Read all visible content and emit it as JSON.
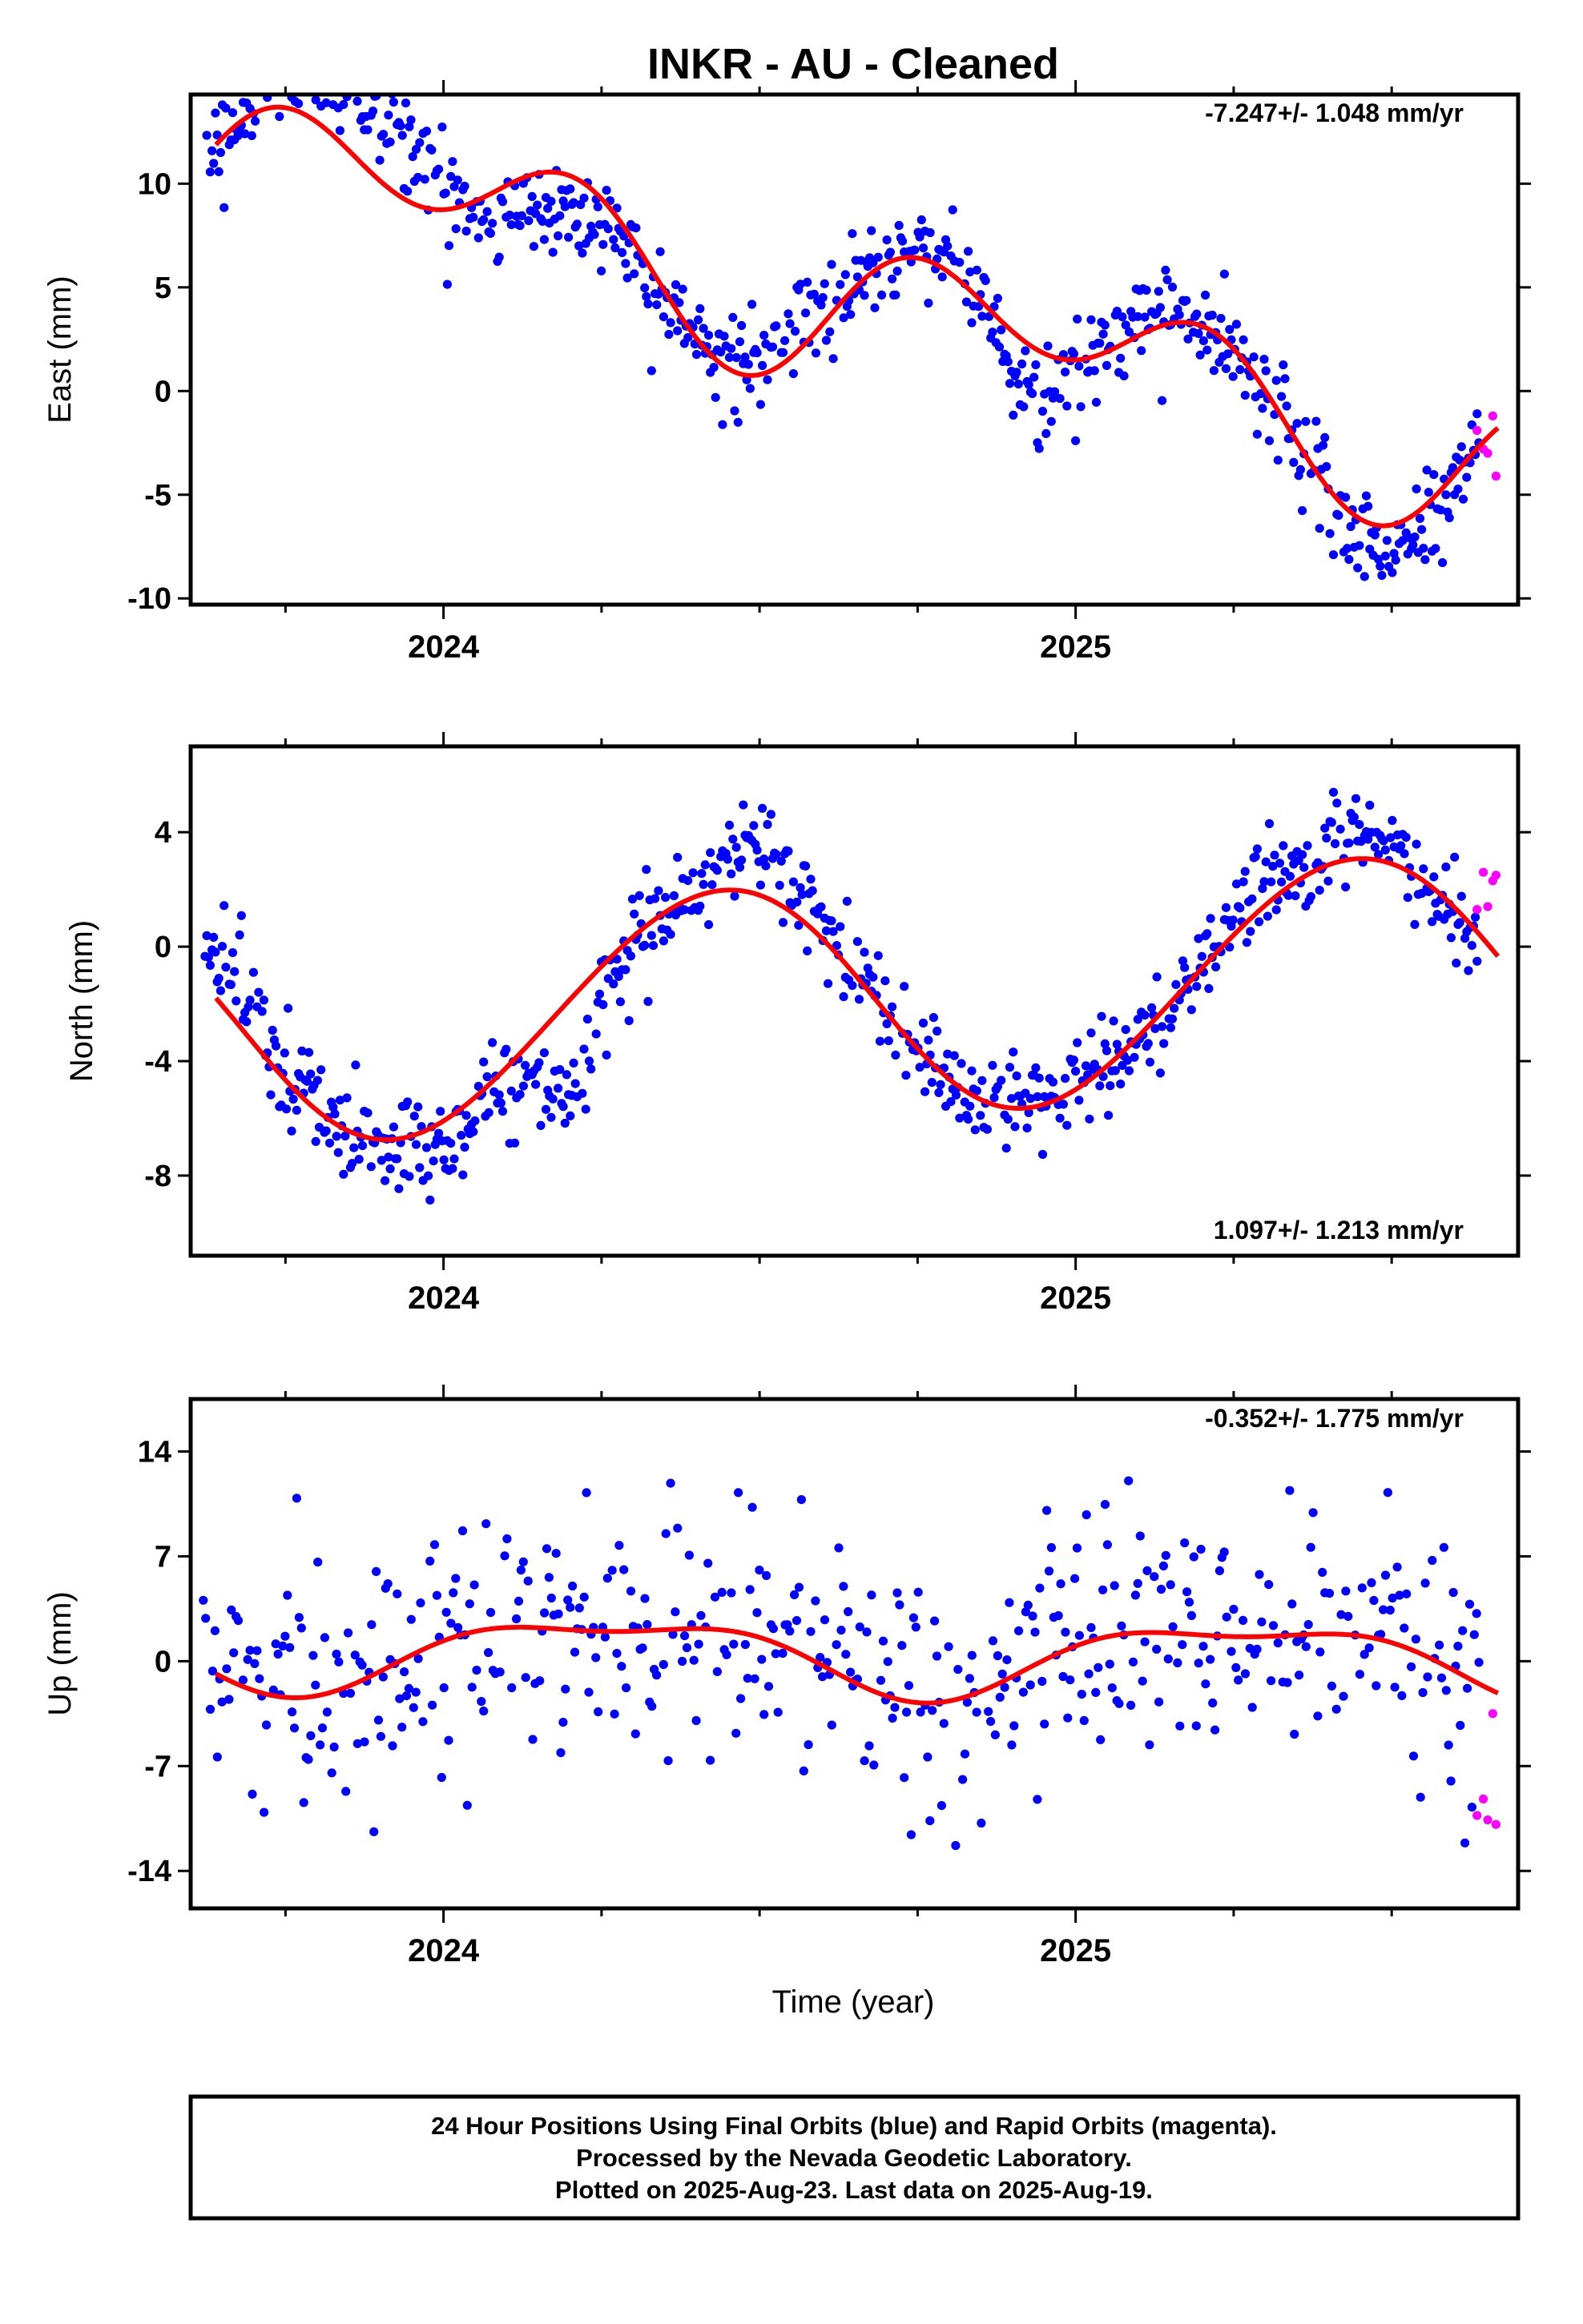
{
  "chart_data": {
    "type": "scatter",
    "title": "INKR  - AU - Cleaned",
    "xlabel": "Time (year)",
    "xlim": [
      2023.6,
      2025.7
    ],
    "x_ticks": [
      2024,
      2025
    ],
    "x_tick_labels": [
      "2024",
      "2025"
    ],
    "colors": {
      "final": "#0000ff",
      "rapid": "#ff00ff",
      "model": "#ff0000",
      "frame": "#000000"
    },
    "panels": [
      {
        "id": "east",
        "ylabel": "East (mm)",
        "ylim": [
          -10.3,
          14.3
        ],
        "y_ticks": [
          10,
          5,
          0,
          -5,
          -10
        ],
        "y_tick_labels": [
          "10",
          "5",
          "0",
          "-5",
          "-10"
        ],
        "rate": "-7.247+/- 1.048 mm/yr",
        "model": {
          "offset": 5.4,
          "trend": -7.247,
          "annual_amp": 2.2,
          "annual_phase_deg": 100,
          "semi_amp": 2.6,
          "semi_phase_deg": 290
        },
        "final_series": {
          "x_start": 2023.62,
          "x_end": 2025.64,
          "step_days": 1.0,
          "anomalies": [
            [
              2023.8,
              2.5,
              0.08
            ],
            [
              2023.93,
              2.8,
              0.08
            ],
            [
              2024.12,
              -1.6,
              0.07
            ],
            [
              2024.22,
              -1.4,
              0.06
            ],
            [
              2024.54,
              1.4,
              0.06
            ],
            [
              2024.78,
              0.9,
              0.06
            ],
            [
              2024.93,
              -2.6,
              0.05
            ],
            [
              2025.1,
              0.8,
              0.06
            ],
            [
              2025.5,
              -1.2,
              0.07
            ]
          ],
          "noise": 1.15
        },
        "rapid_points": {
          "x": [
            2025.635,
            2025.645,
            2025.652,
            2025.66,
            2025.665
          ],
          "y": [
            -1.9,
            -2.8,
            -3.0,
            -1.2,
            -4.1
          ]
        }
      },
      {
        "id": "north",
        "ylabel": "North (mm)",
        "ylim": [
          -10.8,
          7.0
        ],
        "y_ticks": [
          4,
          0,
          -4,
          -8
        ],
        "y_tick_labels": [
          "4",
          "0",
          "-4",
          "-8"
        ],
        "rate": "1.097+/- 1.213 mm/yr",
        "model": {
          "offset": -2.0,
          "trend": 1.097,
          "annual_amp": 4.05,
          "annual_phase_deg": 295,
          "semi_amp": 0.2,
          "semi_phase_deg": 40
        },
        "final_series": {
          "x_start": 2023.62,
          "x_end": 2025.64,
          "step_days": 1.0,
          "anomalies": [
            [
              2023.66,
              1.9,
              0.05
            ],
            [
              2024.02,
              -0.9,
              0.06
            ],
            [
              2024.2,
              -3.2,
              0.07
            ],
            [
              2024.5,
              1.6,
              0.07
            ],
            [
              2024.62,
              0.5,
              0.05
            ],
            [
              2024.95,
              0.5,
              0.05
            ],
            [
              2025.3,
              1.0,
              0.06
            ],
            [
              2025.45,
              0.8,
              0.06
            ]
          ],
          "noise": 0.85
        },
        "rapid_points": {
          "x": [
            2025.635,
            2025.645,
            2025.652,
            2025.66,
            2025.665
          ],
          "y": [
            1.3,
            2.6,
            1.4,
            2.3,
            2.5
          ]
        }
      },
      {
        "id": "up",
        "ylabel": "Up (mm)",
        "ylim": [
          -16.5,
          17.5
        ],
        "y_ticks": [
          14,
          7,
          0,
          -7,
          -14
        ],
        "y_tick_labels": [
          "14",
          "7",
          "0",
          "-7",
          "-14"
        ],
        "rate": "-0.352+/- 1.775 mm/yr",
        "model": {
          "offset": 0.5,
          "trend": -0.352,
          "annual_amp": 2.3,
          "annual_phase_deg": 355,
          "semi_amp": 0.9,
          "semi_phase_deg": 80
        },
        "final_series": {
          "x_start": 2023.62,
          "x_end": 2025.64,
          "step_days": 1.35,
          "anomalies": [],
          "noise": 4.3
        },
        "rapid_points": {
          "x": [
            2025.635,
            2025.645,
            2025.652,
            2025.66,
            2025.665
          ],
          "y": [
            -10.3,
            -9.2,
            -10.6,
            -3.5,
            -10.9
          ]
        }
      }
    ]
  },
  "footer": {
    "line1": "24 Hour Positions Using Final Orbits (blue) and Rapid Orbits (magenta).",
    "line2": "Processed by the Nevada Geodetic Laboratory.",
    "line3": "Plotted on 2025-Aug-23. Last data on 2025-Aug-19."
  }
}
